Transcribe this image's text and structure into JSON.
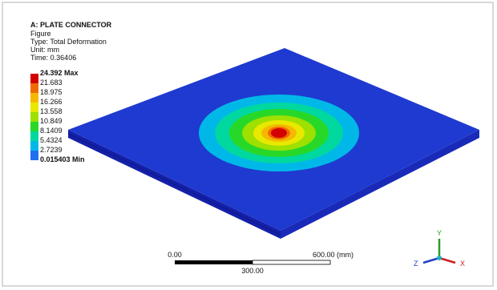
{
  "header": {
    "title": "A: PLATE CONNECTOR",
    "lines": [
      "Figure",
      "Type: Total Deformation",
      "Unit: mm",
      "Time: 0.36406"
    ]
  },
  "legend": {
    "max_label": "24.392 Max",
    "labels": [
      "21.683",
      "18.975",
      "16.266",
      "13.558",
      "10.849",
      "8.1409",
      "5.4324",
      "2.7239"
    ],
    "min_label": "0.015403 Min",
    "colors": [
      "#d40000",
      "#f06a00",
      "#f5b800",
      "#e8e800",
      "#9ee000",
      "#28d828",
      "#00d8a0",
      "#00b8e8",
      "#2070f0"
    ]
  },
  "scale_bar": {
    "start": "0.00",
    "end": "600.00 (mm)",
    "middle": "300.00"
  },
  "triad": {
    "y": "Y",
    "z": "Z",
    "x": "X"
  }
}
